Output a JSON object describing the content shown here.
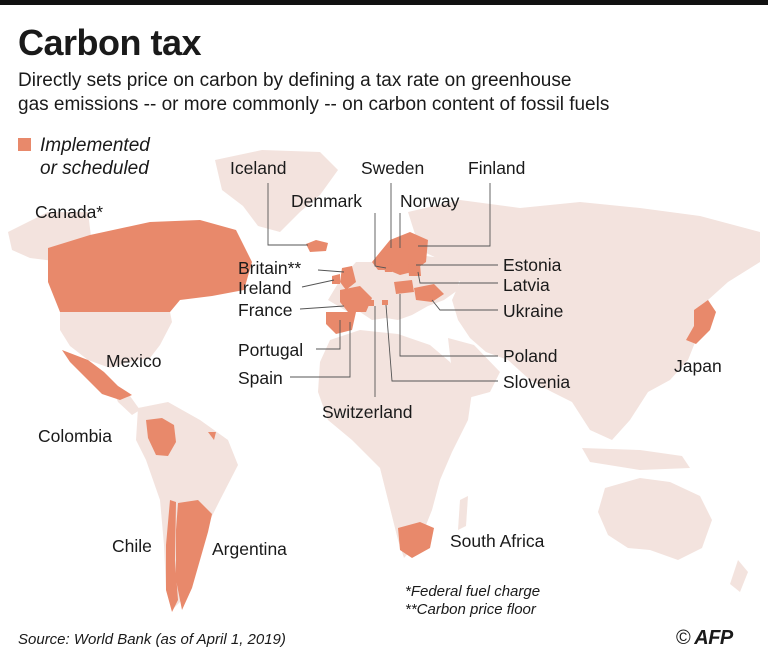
{
  "header": {
    "title": "Carbon tax",
    "subtitle_line1": "Directly sets price on carbon by defining a tax rate on greenhouse",
    "subtitle_line2": "gas emissions -- or more commonly -- on carbon content of fossil fuels"
  },
  "legend": {
    "line1": "Implemented",
    "line2": "or scheduled",
    "color": "#e8896b"
  },
  "colors": {
    "land": "#f3e3de",
    "implemented": "#e8896b",
    "leader": "#555555"
  },
  "countries": {
    "canada": "Canada*",
    "mexico": "Mexico",
    "colombia": "Colombia",
    "chile": "Chile",
    "argentina": "Argentina",
    "iceland": "Iceland",
    "denmark": "Denmark",
    "sweden": "Sweden",
    "norway": "Norway",
    "finland": "Finland",
    "britain": "Britain**",
    "ireland": "Ireland",
    "france": "France",
    "portugal": "Portugal",
    "spain": "Spain",
    "switzerland": "Switzerland",
    "estonia": "Estonia",
    "latvia": "Latvia",
    "ukraine": "Ukraine",
    "poland": "Poland",
    "slovenia": "Slovenia",
    "japan": "Japan",
    "south_africa": "South Africa"
  },
  "notes": {
    "note1": "*Federal fuel charge",
    "note2": "**Carbon price floor"
  },
  "footer": {
    "source": "Source: World Bank (as of April 1, 2019)",
    "copyright": "©",
    "agency": "AFP"
  }
}
